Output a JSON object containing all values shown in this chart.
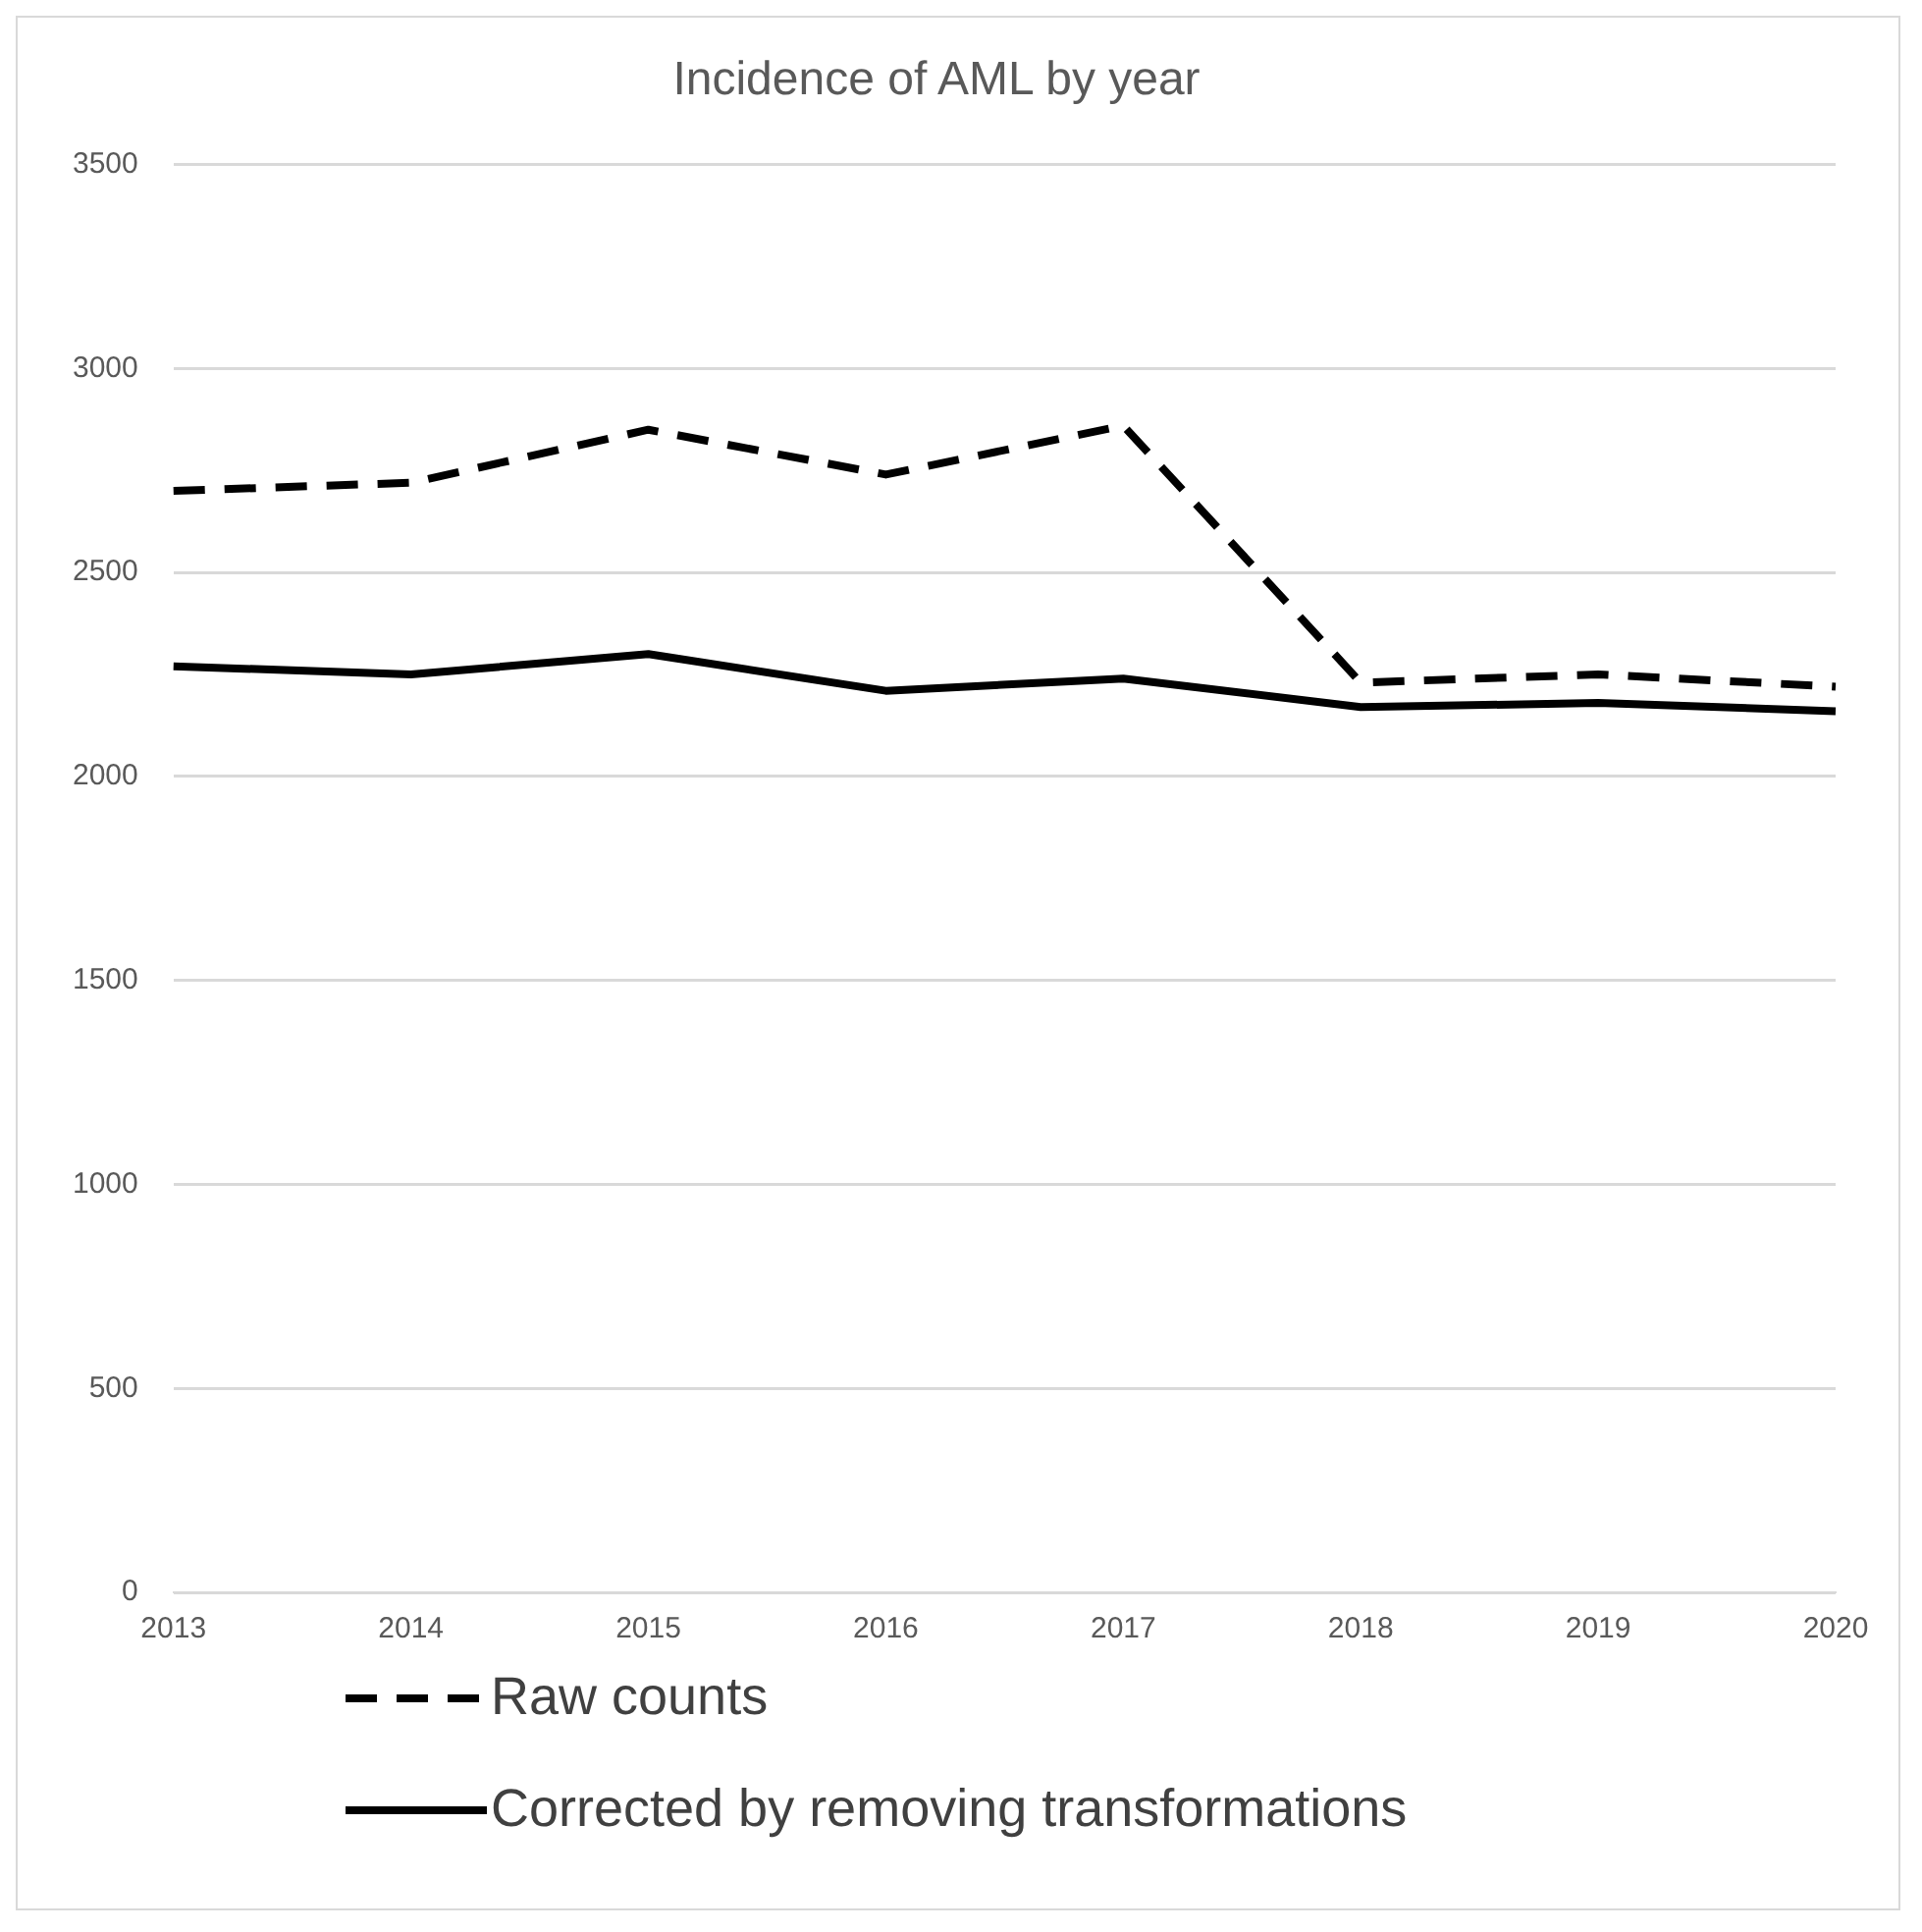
{
  "chart_data": {
    "type": "line",
    "title": "Incidence of AML by year",
    "categories": [
      "2013",
      "2014",
      "2015",
      "2016",
      "2017",
      "2018",
      "2019",
      "2020"
    ],
    "series": [
      {
        "name": "Raw counts",
        "color": "#000000",
        "line_style": "dashed",
        "values": [
          2700,
          2720,
          2850,
          2740,
          2860,
          2230,
          2250,
          2220
        ]
      },
      {
        "name": "Corrected by removing transformations",
        "color": "#000000",
        "line_style": "solid",
        "values": [
          2270,
          2250,
          2300,
          2210,
          2240,
          2170,
          2180,
          2160
        ]
      }
    ],
    "ylim": [
      0,
      3500
    ],
    "yticks": [
      0,
      500,
      1000,
      1500,
      2000,
      2500,
      3000,
      3500
    ],
    "grid": "y",
    "legend": "bottom",
    "marker": "none"
  }
}
